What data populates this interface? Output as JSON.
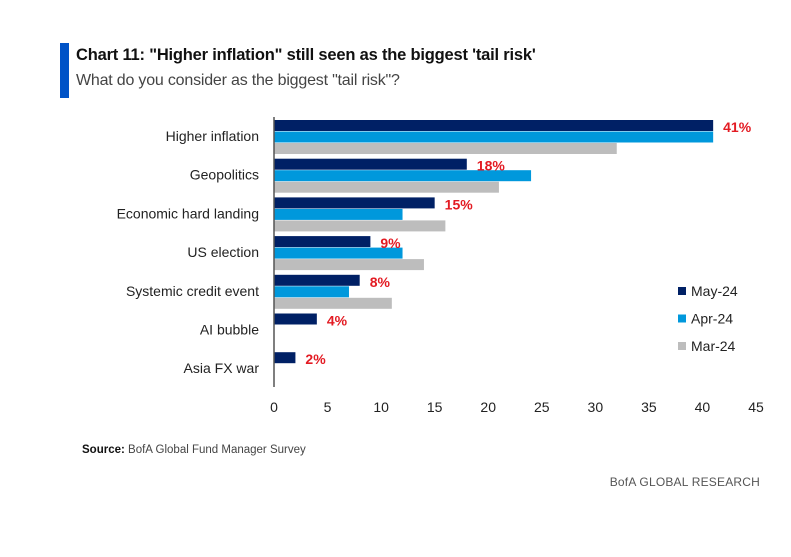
{
  "header": {
    "title": "Chart 11: \"Higher inflation\" still seen as the biggest 'tail risk'",
    "subtitle": "What do you consider as the biggest \"tail risk\"?"
  },
  "footer": {
    "source_label": "Source:",
    "source_text": "BofA Global Fund Manager Survey",
    "brand": "BofA GLOBAL RESEARCH"
  },
  "colors": {
    "accent": "#0053c7",
    "may": "#002065",
    "apr": "#0098dc",
    "mar": "#bdbdbd",
    "label": "#e31b23"
  },
  "chart_data": {
    "type": "bar",
    "orientation": "horizontal",
    "title": "Chart 11: \"Higher inflation\" still seen as the biggest 'tail risk'",
    "subtitle": "What do you consider as the biggest \"tail risk\"?",
    "categories": [
      "Higher inflation",
      "Geopolitics",
      "Economic hard landing",
      "US election",
      "Systemic credit event",
      "AI bubble",
      "Asia FX war"
    ],
    "series": [
      {
        "name": "May-24",
        "values": [
          41,
          18,
          15,
          9,
          8,
          4,
          2
        ]
      },
      {
        "name": "Apr-24",
        "values": [
          41,
          24,
          12,
          12,
          7,
          null,
          null
        ]
      },
      {
        "name": "Mar-24",
        "values": [
          32,
          21,
          16,
          14,
          11,
          null,
          null
        ]
      }
    ],
    "data_labels": [
      "41%",
      "18%",
      "15%",
      "9%",
      "8%",
      "4%",
      "2%"
    ],
    "xlabel": "",
    "ylabel": "",
    "xlim": [
      0,
      45
    ],
    "xticks": [
      0,
      5,
      10,
      15,
      20,
      25,
      30,
      35,
      40,
      45
    ],
    "grid": false,
    "legend": "right"
  }
}
